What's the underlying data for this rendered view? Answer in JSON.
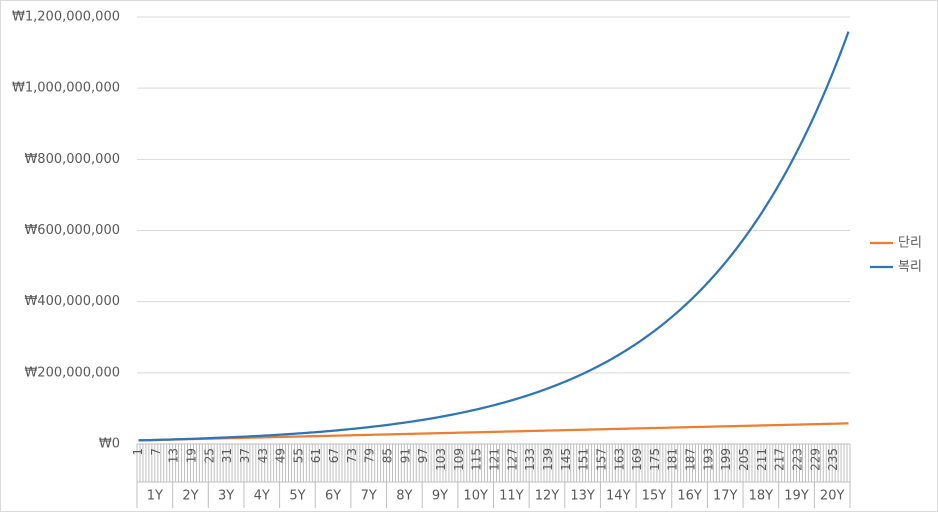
{
  "chart_data": {
    "type": "line",
    "categories": [
      1,
      null,
      null,
      null,
      null,
      null,
      7,
      null,
      null,
      null,
      null,
      null,
      13,
      null,
      null,
      null,
      null,
      null,
      19,
      null,
      null,
      null,
      null,
      null,
      25,
      null,
      null,
      null,
      null,
      null,
      31,
      null,
      null,
      null,
      null,
      null,
      37,
      null,
      null,
      null,
      null,
      null,
      43,
      null,
      null,
      null,
      null,
      null,
      49,
      null,
      null,
      null,
      null,
      null,
      55,
      null,
      null,
      null,
      null,
      null,
      61,
      null,
      null,
      null,
      null,
      null,
      67,
      null,
      null,
      null,
      null,
      null,
      73,
      null,
      null,
      null,
      null,
      null,
      79,
      null,
      null,
      null,
      null,
      null,
      85,
      null,
      null,
      null,
      null,
      null,
      91,
      null,
      null,
      null,
      null,
      null,
      97,
      null,
      null,
      null,
      null,
      null,
      103,
      null,
      null,
      null,
      null,
      null,
      109,
      null,
      null,
      null,
      null,
      null,
      115,
      null,
      null,
      null,
      null,
      null,
      121,
      null,
      null,
      null,
      null,
      null,
      127,
      null,
      null,
      null,
      null,
      null,
      133,
      null,
      null,
      null,
      null,
      null,
      139,
      null,
      null,
      null,
      null,
      null,
      145,
      null,
      null,
      null,
      null,
      null,
      151,
      null,
      null,
      null,
      null,
      null,
      157,
      null,
      null,
      null,
      null,
      null,
      163,
      null,
      null,
      null,
      null,
      null,
      169,
      null,
      null,
      null,
      null,
      null,
      175,
      null,
      null,
      null,
      null,
      null,
      181,
      null,
      null,
      null,
      null,
      null,
      187,
      null,
      null,
      null,
      null,
      null,
      193,
      null,
      null,
      null,
      null,
      null,
      199,
      null,
      null,
      null,
      null,
      null,
      205,
      null,
      null,
      null,
      null,
      null,
      211,
      null,
      null,
      null,
      null,
      null,
      217,
      null,
      null,
      null,
      null,
      null,
      223,
      null,
      null,
      null,
      null,
      null,
      229,
      null,
      null,
      null,
      null,
      null,
      235,
      null,
      null,
      null,
      null,
      null
    ],
    "groups": [
      "1Y",
      "2Y",
      "3Y",
      "4Y",
      "5Y",
      "6Y",
      "7Y",
      "8Y",
      "9Y",
      "10Y",
      "11Y",
      "12Y",
      "13Y",
      "14Y",
      "15Y",
      "16Y",
      "17Y",
      "18Y",
      "19Y",
      "20Y"
    ],
    "series": [
      {
        "name": "단리",
        "color": "#ed7d31",
        "values": [
          10200000,
          10400000,
          10600000,
          10800000,
          11000000,
          11200000,
          11400000,
          11600000,
          11800000,
          12000000,
          12200000,
          12400000,
          12600000,
          12800000,
          13000000,
          13200000,
          13400000,
          13600000,
          13800000,
          14000000,
          14200000,
          14400000,
          14600000,
          14800000,
          15000000,
          15200000,
          15400000,
          15600000,
          15800000,
          16000000,
          16200000,
          16400000,
          16600000,
          16800000,
          17000000,
          17200000,
          17400000,
          17600000,
          17800000,
          18000000,
          18200000,
          18400000,
          18600000,
          18800000,
          19000000,
          19200000,
          19400000,
          19600000,
          19800000,
          20000000,
          20200000,
          20400000,
          20600000,
          20800000,
          21000000,
          21200000,
          21400000,
          21600000,
          21800000,
          22000000,
          22200000,
          22400000,
          22600000,
          22800000,
          23000000,
          23200000,
          23400000,
          23600000,
          23800000,
          24000000,
          24200000,
          24400000,
          24600000,
          24800000,
          25000000,
          25200000,
          25400000,
          25600000,
          25800000,
          26000000,
          26200000,
          26400000,
          26600000,
          26800000,
          27000000,
          27200000,
          27400000,
          27600000,
          27800000,
          28000000,
          28200000,
          28400000,
          28600000,
          28800000,
          29000000,
          29200000,
          29400000,
          29600000,
          29800000,
          30000000,
          30200000,
          30400000,
          30600000,
          30800000,
          31000000,
          31200000,
          31400000,
          31600000,
          31800000,
          32000000,
          32200000,
          32400000,
          32600000,
          32800000,
          33000000,
          33200000,
          33400000,
          33600000,
          33800000,
          34000000,
          34200000,
          34400000,
          34600000,
          34800000,
          35000000,
          35200000,
          35400000,
          35600000,
          35800000,
          36000000,
          36200000,
          36400000,
          36600000,
          36800000,
          37000000,
          37200000,
          37400000,
          37600000,
          37800000,
          38000000,
          38200000,
          38400000,
          38600000,
          38800000,
          39000000,
          39200000,
          39400000,
          39600000,
          39800000,
          40000000,
          40200000,
          40400000,
          40600000,
          40800000,
          41000000,
          41200000,
          41400000,
          41600000,
          41800000,
          42000000,
          42200000,
          42400000,
          42600000,
          42800000,
          43000000,
          43200000,
          43400000,
          43600000,
          43800000,
          44000000,
          44200000,
          44400000,
          44600000,
          44800000,
          45000000,
          45200000,
          45400000,
          45600000,
          45800000,
          46000000,
          46200000,
          46400000,
          46600000,
          46800000,
          47000000,
          47200000,
          47400000,
          47600000,
          47800000,
          48000000,
          48200000,
          48400000,
          48600000,
          48800000,
          49000000,
          49200000,
          49400000,
          49600000,
          49800000,
          50000000,
          50200000,
          50400000,
          50600000,
          50800000,
          51000000,
          51200000,
          51400000,
          51600000,
          51800000,
          52000000,
          52200000,
          52400000,
          52600000,
          52800000,
          53000000,
          53200000,
          53400000,
          53600000,
          53800000,
          54000000,
          54200000,
          54400000,
          54600000,
          54800000,
          55000000,
          55200000,
          55400000,
          55600000,
          55800000,
          56000000,
          56200000,
          56400000,
          56600000,
          56800000,
          57000000,
          57200000,
          57400000,
          57600000,
          57800000,
          58000000
        ]
      },
      {
        "name": "복리",
        "color": "#2e75b6",
        "values": [
          10200000,
          10400000,
          10610000,
          10820000,
          11040000,
          11260000,
          11490000,
          11720000,
          11950000,
          12190000,
          12430000,
          12680000,
          12940000,
          13190000,
          13460000,
          13730000,
          14000000,
          14280000,
          14570000,
          14860000,
          15160000,
          15460000,
          15770000,
          16080000,
          16410000,
          16730000,
          17070000,
          17410000,
          17760000,
          18110000,
          18480000,
          18850000,
          19220000,
          19610000,
          20000000,
          20400000,
          20810000,
          21220000,
          21650000,
          22080000,
          22520000,
          22970000,
          23430000,
          23900000,
          24380000,
          24870000,
          25360000,
          25870000,
          26390000,
          26920000,
          27450000,
          28000000,
          28560000,
          29130000,
          29720000,
          30310000,
          30920000,
          31540000,
          32170000,
          32810000,
          33470000,
          34140000,
          34820000,
          35510000,
          36220000,
          36950000,
          37690000,
          38440000,
          39210000,
          40000000,
          40800000,
          41610000,
          42440000,
          43290000,
          44160000,
          45040000,
          45940000,
          46860000,
          47800000,
          48750000,
          49730000,
          50720000,
          51740000,
          52770000,
          53830000,
          54910000,
          56000000,
          57120000,
          58270000,
          59430000,
          60620000,
          61830000,
          63070000,
          64330000,
          65620000,
          66930000,
          68270000,
          69630000,
          71030000,
          72450000,
          73890000,
          75370000,
          76880000,
          78420000,
          79990000,
          81590000,
          83220000,
          84880000,
          86580000,
          88310000,
          90080000,
          91880000,
          93720000,
          95590000,
          97500000,
          99450000,
          101440000,
          103470000,
          105540000,
          107650000,
          109800000,
          112000000,
          114240000,
          116530000,
          118860000,
          121230000,
          123660000,
          126130000,
          128650000,
          131230000,
          133850000,
          136530000,
          139260000,
          142040000,
          144880000,
          147780000,
          150740000,
          153750000,
          156830000,
          159960000,
          163160000,
          166430000,
          169760000,
          173150000,
          176610000,
          180150000,
          183750000,
          187430000,
          191170000,
          195000000,
          198900000,
          202870000,
          206930000,
          211070000,
          215290000,
          219600000,
          223990000,
          228470000,
          233040000,
          237700000,
          242450000,
          247300000,
          252250000,
          257290000,
          262440000,
          267690000,
          273040000,
          278500000,
          284070000,
          289750000,
          295550000,
          301460000,
          307490000,
          313640000,
          319910000,
          326310000,
          332840000,
          339490000,
          346280000,
          353210000,
          360270000,
          367480000,
          374830000,
          382320000,
          389970000,
          397770000,
          405720000,
          413840000,
          422110000,
          430560000,
          439170000,
          447950000,
          456910000,
          466050000,
          475370000,
          484870000,
          494570000,
          504460000,
          514550000,
          524840000,
          535340000,
          546050000,
          556970000,
          568110000,
          579480000,
          591070000,
          602890000,
          614940000,
          627240000,
          639790000,
          652580000,
          665640000,
          678950000,
          692530000,
          706380000,
          720500000,
          734910000,
          749610000,
          764600000,
          779890000,
          795490000,
          811400000,
          827630000,
          844180000,
          861070000,
          878290000,
          895850000,
          913770000,
          932050000,
          950690000,
          969700000,
          989100000,
          1008880000,
          1029060000,
          1049640000,
          1070630000,
          1092040000,
          1113880000,
          1136160000,
          1158890000
        ]
      }
    ],
    "ylim": [
      0,
      1200000000
    ],
    "yticks": [
      {
        "value": 0,
        "label": "₩0"
      },
      {
        "value": 200000000,
        "label": "₩200,000,000"
      },
      {
        "value": 400000000,
        "label": "₩400,000,000"
      },
      {
        "value": 600000000,
        "label": "₩600,000,000"
      },
      {
        "value": 800000000,
        "label": "₩800,000,000"
      },
      {
        "value": 1000000000,
        "label": "₩1,000,000,000"
      },
      {
        "value": 1200000000,
        "label": "₩1,200,000,000"
      }
    ],
    "grid": true,
    "legend": "right"
  }
}
